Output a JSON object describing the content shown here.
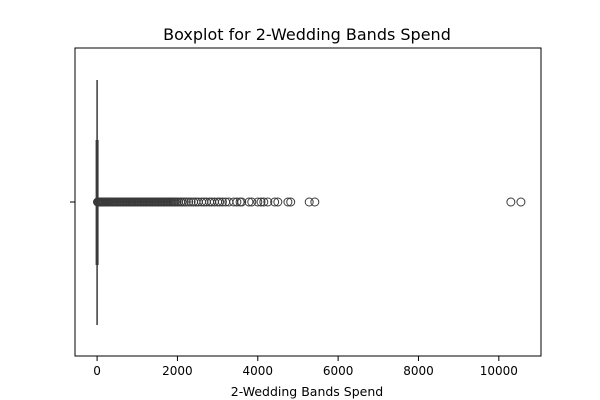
{
  "chart_data": {
    "type": "boxplot",
    "orientation": "horizontal",
    "title": "Boxplot for 2-Wedding Bands Spend",
    "xlabel": "2-Wedding Bands Spend",
    "ylabel": "",
    "xlim": [
      -550,
      11050
    ],
    "x_ticks": [
      0,
      2000,
      4000,
      6000,
      8000,
      10000
    ],
    "x_tick_labels": [
      "0",
      "2000",
      "4000",
      "6000",
      "8000",
      "10000"
    ],
    "grid": false,
    "box": {
      "min": 0,
      "q1": 0,
      "median": 0,
      "q3": 0,
      "max": 0
    },
    "outliers": [
      10,
      25,
      40,
      55,
      70,
      85,
      100,
      120,
      140,
      160,
      180,
      200,
      225,
      250,
      275,
      300,
      330,
      360,
      390,
      420,
      450,
      480,
      510,
      540,
      570,
      600,
      630,
      660,
      690,
      720,
      750,
      780,
      810,
      840,
      870,
      900,
      930,
      960,
      990,
      1020,
      1050,
      1080,
      1110,
      1140,
      1170,
      1200,
      1230,
      1260,
      1290,
      1320,
      1350,
      1380,
      1410,
      1440,
      1470,
      1500,
      1530,
      1560,
      1590,
      1620,
      1650,
      1680,
      1710,
      1740,
      1770,
      1800,
      1830,
      1860,
      1890,
      1920,
      1950,
      1990,
      2030,
      2080,
      2120,
      2170,
      2220,
      2280,
      2340,
      2400,
      2460,
      2520,
      2600,
      2660,
      2720,
      2800,
      2850,
      2920,
      3000,
      3050,
      3120,
      3200,
      3280,
      3400,
      3480,
      3560,
      3600,
      3780,
      3850,
      4000,
      4080,
      4150,
      4250,
      4420,
      4500,
      4750,
      4820,
      5280,
      5420,
      10300,
      10550
    ],
    "color": "#3a3a3a"
  }
}
